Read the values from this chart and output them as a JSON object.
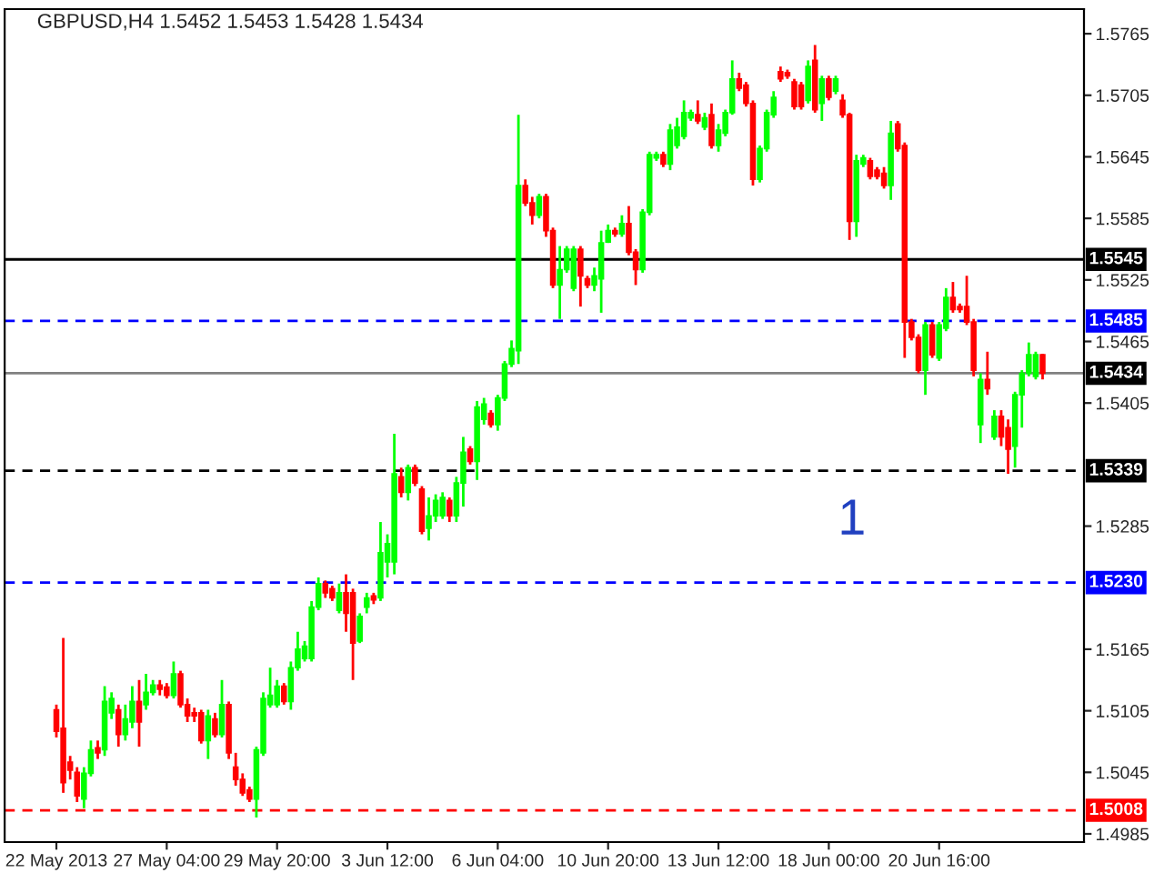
{
  "chart_data": {
    "type": "candlestick",
    "title": "GBPUSD,H4 1.5452 1.5453 1.5428 1.5434",
    "categories": [
      "22 May 2013",
      null,
      null,
      null,
      null,
      null,
      null,
      null,
      null,
      null,
      null,
      null,
      null,
      null,
      null,
      null,
      "27 May 04:00",
      null,
      null,
      null,
      null,
      null,
      null,
      null,
      null,
      null,
      null,
      null,
      null,
      null,
      null,
      null,
      "29 May 20:00",
      null,
      null,
      null,
      null,
      null,
      null,
      null,
      null,
      null,
      null,
      null,
      null,
      null,
      null,
      null,
      "3 Jun 12:00",
      null,
      null,
      null,
      null,
      null,
      null,
      null,
      null,
      null,
      null,
      null,
      null,
      null,
      null,
      null,
      "6 Jun 04:00",
      null,
      null,
      null,
      null,
      null,
      null,
      null,
      null,
      null,
      null,
      null,
      null,
      null,
      null,
      null,
      "10 Jun 20:00",
      null,
      null,
      null,
      null,
      null,
      null,
      null,
      null,
      null,
      null,
      null,
      null,
      null,
      null,
      null,
      "13 Jun 12:00",
      null,
      null,
      null,
      null,
      null,
      null,
      null,
      null,
      null,
      null,
      null,
      null,
      null,
      null,
      null,
      "18 Jun 00:00",
      null,
      null,
      null,
      null,
      null,
      null,
      null,
      null,
      null,
      null,
      null,
      null,
      null,
      null,
      null,
      "20 Jun 16:00",
      null,
      null,
      null,
      null,
      null,
      null,
      null,
      null,
      null,
      null,
      null,
      null,
      null,
      null,
      null
    ],
    "ohlc": [
      [
        1.5106,
        1.5111,
        1.5079,
        1.5085
      ],
      [
        1.5088,
        1.5176,
        1.5025,
        1.5035
      ],
      [
        1.5055,
        1.5061,
        1.5038,
        1.5047
      ],
      [
        1.5045,
        1.505,
        1.5016,
        1.5022
      ],
      [
        1.5019,
        1.505,
        1.501,
        1.5044
      ],
      [
        1.5044,
        1.5076,
        1.5041,
        1.5067
      ],
      [
        1.5069,
        1.5076,
        1.5058,
        1.5064
      ],
      [
        1.5067,
        1.5129,
        1.5061,
        1.5114
      ],
      [
        1.5103,
        1.5123,
        1.5097,
        1.5117
      ],
      [
        1.5106,
        1.5111,
        1.507,
        1.5082
      ],
      [
        1.5082,
        1.5111,
        1.5076,
        1.5097
      ],
      [
        1.5094,
        1.5129,
        1.5088,
        1.5114
      ],
      [
        1.5114,
        1.5135,
        1.507,
        1.5094
      ],
      [
        1.5111,
        1.5141,
        1.5106,
        1.5123
      ],
      [
        1.5123,
        1.5135,
        1.512,
        1.513
      ],
      [
        1.513,
        1.5135,
        1.512,
        1.5126
      ],
      [
        1.5128,
        1.5132,
        1.5117,
        1.512
      ],
      [
        1.512,
        1.5153,
        1.5117,
        1.5141
      ],
      [
        1.5141,
        1.5144,
        1.5108,
        1.5111
      ],
      [
        1.5111,
        1.5117,
        1.5094,
        1.51
      ],
      [
        1.5103,
        1.5108,
        1.5094,
        1.51
      ],
      [
        1.5103,
        1.5106,
        1.5073,
        1.5076
      ],
      [
        1.5076,
        1.5106,
        1.5058,
        1.51
      ],
      [
        1.5097,
        1.5103,
        1.5079,
        1.5082
      ],
      [
        1.5082,
        1.5135,
        1.5079,
        1.5111
      ],
      [
        1.5111,
        1.5114,
        1.5058,
        1.5064
      ],
      [
        1.505,
        1.5064,
        1.5032,
        1.5038
      ],
      [
        1.5038,
        1.5044,
        1.5022,
        1.5025
      ],
      [
        1.5028,
        1.5031,
        1.5016,
        1.5019
      ],
      [
        1.5019,
        1.507,
        1.5001,
        1.5067
      ],
      [
        1.5064,
        1.5123,
        1.5061,
        1.5117
      ],
      [
        1.5111,
        1.5147,
        1.5108,
        1.512
      ],
      [
        1.5111,
        1.5135,
        1.5108,
        1.5129
      ],
      [
        1.5129,
        1.5132,
        1.5111,
        1.5114
      ],
      [
        1.5114,
        1.5153,
        1.5106,
        1.5147
      ],
      [
        1.5147,
        1.5182,
        1.5144,
        1.5165
      ],
      [
        1.5156,
        1.5173,
        1.5153,
        1.5168
      ],
      [
        1.5156,
        1.5212,
        1.5153,
        1.5206
      ],
      [
        1.5206,
        1.5235,
        1.5203,
        1.5229
      ],
      [
        1.5229,
        1.5232,
        1.5215,
        1.522
      ],
      [
        1.5224,
        1.5227,
        1.5212,
        1.5215
      ],
      [
        1.5203,
        1.5229,
        1.52,
        1.522
      ],
      [
        1.522,
        1.5238,
        1.5182,
        1.52
      ],
      [
        1.522,
        1.5224,
        1.5135,
        1.5171
      ],
      [
        1.5173,
        1.52,
        1.5171,
        1.5197
      ],
      [
        1.5206,
        1.522,
        1.52,
        1.5215
      ],
      [
        1.5217,
        1.522,
        1.5209,
        1.5213
      ],
      [
        1.5215,
        1.5289,
        1.5212,
        1.5259
      ],
      [
        1.525,
        1.5277,
        1.5235,
        1.5268
      ],
      [
        1.525,
        1.5375,
        1.5238,
        1.5336
      ],
      [
        1.5333,
        1.5342,
        1.5313,
        1.5318
      ],
      [
        1.5318,
        1.5345,
        1.531,
        1.5342
      ],
      [
        1.5342,
        1.5345,
        1.5324,
        1.5327
      ],
      [
        1.5321,
        1.5324,
        1.5277,
        1.528
      ],
      [
        1.5283,
        1.5313,
        1.5271,
        1.5295
      ],
      [
        1.5295,
        1.5316,
        1.5289,
        1.531
      ],
      [
        1.5295,
        1.5318,
        1.5292,
        1.5313
      ],
      [
        1.531,
        1.5313,
        1.5289,
        1.5295
      ],
      [
        1.5295,
        1.5333,
        1.5289,
        1.5327
      ],
      [
        1.5327,
        1.5372,
        1.5304,
        1.5357
      ],
      [
        1.536,
        1.5363,
        1.5345,
        1.5348
      ],
      [
        1.5348,
        1.5407,
        1.533,
        1.5401
      ],
      [
        1.5389,
        1.541,
        1.5384,
        1.5404
      ],
      [
        1.5395,
        1.5398,
        1.5381,
        1.5384
      ],
      [
        1.5384,
        1.5413,
        1.5378,
        1.541
      ],
      [
        1.541,
        1.5446,
        1.5407,
        1.5443
      ],
      [
        1.5443,
        1.5466,
        1.544,
        1.5458
      ],
      [
        1.5456,
        1.5686,
        1.5443,
        1.5617
      ],
      [
        1.5617,
        1.5623,
        1.5597,
        1.56
      ],
      [
        1.56,
        1.5606,
        1.5579,
        1.5588
      ],
      [
        1.5588,
        1.5609,
        1.5585,
        1.5606
      ],
      [
        1.5606,
        1.5609,
        1.5567,
        1.5573
      ],
      [
        1.5573,
        1.5576,
        1.5517,
        1.552
      ],
      [
        1.552,
        1.5558,
        1.5487,
        1.5535
      ],
      [
        1.5535,
        1.5558,
        1.5532,
        1.5555
      ],
      [
        1.5517,
        1.5558,
        1.5514,
        1.5555
      ],
      [
        1.5555,
        1.5558,
        1.5499,
        1.5529
      ],
      [
        1.5526,
        1.5529,
        1.5517,
        1.552
      ],
      [
        1.552,
        1.5537,
        1.5514,
        1.5529
      ],
      [
        1.5526,
        1.5573,
        1.5493,
        1.5561
      ],
      [
        1.5562,
        1.5579,
        1.5561,
        1.5573
      ],
      [
        1.5573,
        1.5576,
        1.5567,
        1.557
      ],
      [
        1.557,
        1.5588,
        1.5567,
        1.558
      ],
      [
        1.558,
        1.5597,
        1.5549,
        1.5552
      ],
      [
        1.5552,
        1.5555,
        1.552,
        1.5535
      ],
      [
        1.5535,
        1.5594,
        1.5532,
        1.5591
      ],
      [
        1.5591,
        1.565,
        1.5588,
        1.5647
      ],
      [
        1.5644,
        1.565,
        1.5641,
        1.5647
      ],
      [
        1.5647,
        1.565,
        1.5635,
        1.5638
      ],
      [
        1.5638,
        1.5677,
        1.5632,
        1.5671
      ],
      [
        1.5656,
        1.5683,
        1.5653,
        1.5674
      ],
      [
        1.5665,
        1.57,
        1.5662,
        1.5688
      ],
      [
        1.5683,
        1.5691,
        1.568,
        1.5688
      ],
      [
        1.5686,
        1.57,
        1.5677,
        1.568
      ],
      [
        1.5674,
        1.5688,
        1.5671,
        1.5683
      ],
      [
        1.5686,
        1.5697,
        1.5653,
        1.5656
      ],
      [
        1.5656,
        1.5677,
        1.565,
        1.5671
      ],
      [
        1.5668,
        1.5691,
        1.5665,
        1.5688
      ],
      [
        1.5688,
        1.5739,
        1.5686,
        1.5721
      ],
      [
        1.5721,
        1.5727,
        1.5709,
        1.5712
      ],
      [
        1.5715,
        1.5718,
        1.5694,
        1.5697
      ],
      [
        1.5697,
        1.57,
        1.5617,
        1.5623
      ],
      [
        1.5623,
        1.5656,
        1.562,
        1.5653
      ],
      [
        1.5653,
        1.5691,
        1.565,
        1.5688
      ],
      [
        1.5686,
        1.5709,
        1.5683,
        1.5703
      ],
      [
        1.5728,
        1.5733,
        1.5718,
        1.5721
      ],
      [
        1.5727,
        1.573,
        1.5721,
        1.5724
      ],
      [
        1.5718,
        1.5721,
        1.5691,
        1.5694
      ],
      [
        1.5715,
        1.5718,
        1.5691,
        1.5694
      ],
      [
        1.57,
        1.5739,
        1.5697,
        1.5733
      ],
      [
        1.5739,
        1.5754,
        1.5688,
        1.5691
      ],
      [
        1.5697,
        1.5724,
        1.568,
        1.5721
      ],
      [
        1.5721,
        1.5724,
        1.57,
        1.5703
      ],
      [
        1.5709,
        1.5724,
        1.5706,
        1.5721
      ],
      [
        1.57,
        1.5706,
        1.5683,
        1.5686
      ],
      [
        1.5686,
        1.5688,
        1.5564,
        1.5582
      ],
      [
        1.5582,
        1.5647,
        1.5567,
        1.5641
      ],
      [
        1.5638,
        1.5647,
        1.5635,
        1.5644
      ],
      [
        1.5641,
        1.5644,
        1.5623,
        1.5626
      ],
      [
        1.5632,
        1.5635,
        1.5623,
        1.5626
      ],
      [
        1.5629,
        1.5635,
        1.5614,
        1.5617
      ],
      [
        1.5617,
        1.568,
        1.5603,
        1.5668
      ],
      [
        1.5677,
        1.568,
        1.565,
        1.5653
      ],
      [
        1.5656,
        1.5659,
        1.5449,
        1.5484
      ],
      [
        1.5484,
        1.5487,
        1.5466,
        1.5469
      ],
      [
        1.5469,
        1.5472,
        1.5434,
        1.5437
      ],
      [
        1.5437,
        1.5484,
        1.5413,
        1.5481
      ],
      [
        1.5481,
        1.5484,
        1.5449,
        1.5452
      ],
      [
        1.5449,
        1.5484,
        1.5446,
        1.5481
      ],
      [
        1.5478,
        1.5517,
        1.5475,
        1.5508
      ],
      [
        1.5508,
        1.5523,
        1.5493,
        1.5496
      ],
      [
        1.5499,
        1.5502,
        1.5493,
        1.5496
      ],
      [
        1.5499,
        1.5529,
        1.5481,
        1.5484
      ],
      [
        1.5484,
        1.5487,
        1.5431,
        1.5437
      ],
      [
        1.5384,
        1.5434,
        1.5366,
        1.5428
      ],
      [
        1.5428,
        1.5455,
        1.5413,
        1.5419
      ],
      [
        1.5372,
        1.5398,
        1.5369,
        1.5392
      ],
      [
        1.5392,
        1.5398,
        1.5363,
        1.5372
      ],
      [
        1.5381,
        1.5389,
        1.5336,
        1.536
      ],
      [
        1.5363,
        1.5416,
        1.5342,
        1.5413
      ],
      [
        1.5413,
        1.5437,
        1.5381,
        1.5434
      ],
      [
        1.5434,
        1.5464,
        1.5431,
        1.5452
      ],
      [
        1.5431,
        1.5455,
        1.5428,
        1.5452
      ],
      [
        1.5452,
        1.5453,
        1.5428,
        1.5434
      ]
    ],
    "ylim": [
      1.4977,
      1.5789
    ],
    "yticks": [
      1.5765,
      1.5705,
      1.5645,
      1.5585,
      1.5525,
      1.5465,
      1.5405,
      1.5285,
      1.5165,
      1.5105,
      1.5045,
      1.4985
    ],
    "ref_lines": [
      {
        "axis": "y",
        "value": 1.5545,
        "label": "1.5545",
        "color": "#000000",
        "line_style": "solid"
      },
      {
        "axis": "y",
        "value": 1.5485,
        "label": "1.5485",
        "color": "#0000ff",
        "line_style": "dashed"
      },
      {
        "axis": "y",
        "value": 1.5434,
        "label": "1.5434",
        "color": "#808080",
        "line_style": "solid"
      },
      {
        "axis": "y",
        "value": 1.5339,
        "label": "1.5339",
        "color": "#000000",
        "line_style": "dashed"
      },
      {
        "axis": "y",
        "value": 1.523,
        "label": "1.5230",
        "color": "#0000ff",
        "line_style": "dashed"
      },
      {
        "axis": "y",
        "value": 1.5008,
        "label": "1.5008",
        "color": "#ff0000",
        "line_style": "dashed"
      }
    ],
    "annotations": [
      "1"
    ],
    "grid": false
  }
}
